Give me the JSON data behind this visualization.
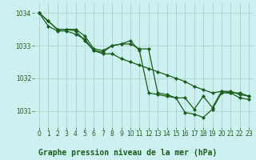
{
  "title": "Graphe pression niveau de la mer (hPa)",
  "background_color": "#cdf0f0",
  "grid_color": "#b0d8d0",
  "line_color": "#1a5c1a",
  "xlim": [
    -0.5,
    23.5
  ],
  "ylim": [
    1030.5,
    1034.3
  ],
  "yticks": [
    1031,
    1032,
    1033,
    1034
  ],
  "xticks": [
    0,
    1,
    2,
    3,
    4,
    5,
    6,
    7,
    8,
    9,
    10,
    11,
    12,
    13,
    14,
    15,
    16,
    17,
    18,
    19,
    20,
    21,
    22,
    23
  ],
  "series": [
    [
      1034.0,
      1033.75,
      1033.5,
      1033.5,
      1033.45,
      1033.15,
      1032.85,
      1032.8,
      1033.0,
      1033.05,
      1033.15,
      1032.85,
      1031.55,
      1031.5,
      1031.45,
      1031.4,
      1031.4,
      1031.05,
      1031.45,
      1031.1,
      1031.6,
      1031.6,
      1031.5,
      1031.45
    ],
    [
      1034.0,
      1033.75,
      1033.5,
      1033.5,
      1033.5,
      1033.3,
      1032.9,
      1032.85,
      1033.0,
      1033.05,
      1033.05,
      1032.9,
      1032.9,
      1031.55,
      1031.5,
      1031.4,
      1030.95,
      1030.9,
      1030.8,
      1031.05,
      1031.55,
      1031.55,
      1031.4,
      1031.35
    ],
    [
      1034.0,
      1033.6,
      1033.45,
      1033.45,
      1033.35,
      1033.2,
      1032.85,
      1032.75,
      1032.75,
      1032.6,
      1032.5,
      1032.4,
      1032.3,
      1032.2,
      1032.1,
      1032.0,
      1031.9,
      1031.75,
      1031.65,
      1031.55,
      1031.6,
      1031.55,
      1031.55,
      1031.45
    ]
  ],
  "title_fontsize": 7.0,
  "tick_fontsize": 5.5,
  "linewidth": 0.9,
  "markersize": 2.2
}
